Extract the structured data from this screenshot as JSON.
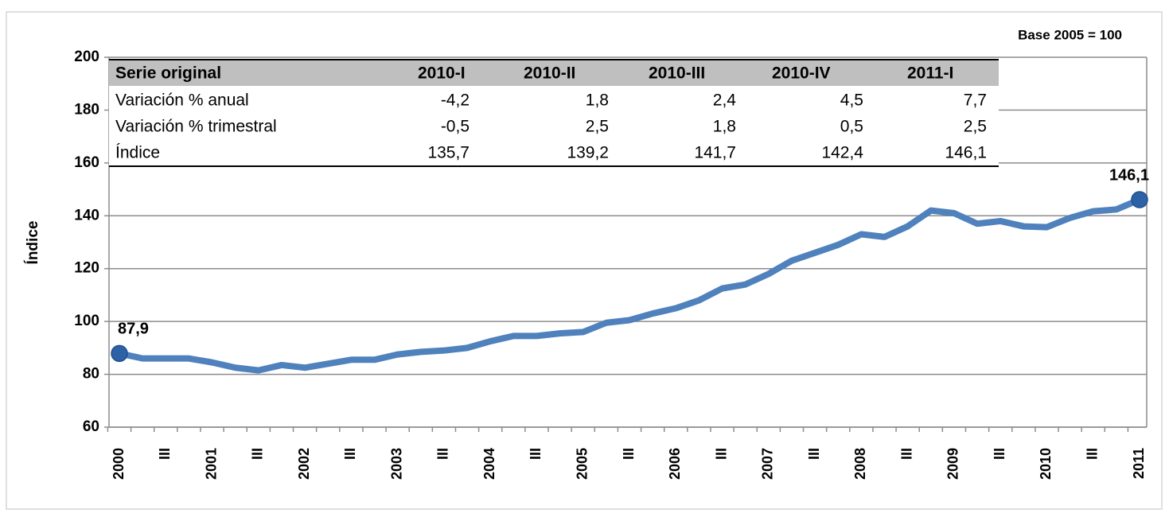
{
  "chart_data": {
    "type": "line",
    "note": "Base 2005 = 100",
    "y_label": "Índice",
    "categories": [
      "2000",
      null,
      "III",
      null,
      "2001",
      null,
      "III",
      null,
      "2002",
      null,
      "III",
      null,
      "2003",
      null,
      "III",
      null,
      "2004",
      null,
      "III",
      null,
      "2005",
      null,
      "III",
      null,
      "2006",
      null,
      "III",
      null,
      "2007",
      null,
      "III",
      null,
      "2008",
      null,
      "III",
      null,
      "2009",
      null,
      "III",
      null,
      "2010",
      null,
      "III",
      null,
      "2011"
    ],
    "series": [
      {
        "name": "Índice",
        "color": "#4f81bd",
        "values": [
          87.9,
          86,
          86,
          86,
          84.5,
          82.5,
          81.5,
          83.5,
          82.5,
          84,
          85.5,
          85.5,
          87.5,
          88.5,
          89,
          90,
          92.5,
          94.5,
          94.5,
          95.5,
          96,
          99.5,
          100.5,
          103,
          105,
          108,
          112.5,
          114,
          118,
          123,
          126,
          129,
          133,
          132,
          136,
          142,
          141,
          137,
          138,
          136,
          135.7,
          139.2,
          141.7,
          142.4,
          146.1
        ],
        "value_labels": [
          "87,9",
          null,
          null,
          null,
          null,
          null,
          null,
          null,
          null,
          null,
          null,
          null,
          null,
          null,
          null,
          null,
          null,
          null,
          null,
          null,
          null,
          null,
          null,
          null,
          null,
          null,
          null,
          null,
          null,
          null,
          null,
          null,
          null,
          null,
          null,
          null,
          null,
          null,
          null,
          null,
          null,
          null,
          null,
          null,
          "146,1"
        ]
      }
    ],
    "ylim": [
      60,
      200
    ],
    "yticks": [
      60,
      80,
      100,
      120,
      140,
      160,
      180,
      200
    ],
    "grid": true,
    "table": {
      "header": [
        "Serie original",
        "2010-I",
        "2010-II",
        "2010-III",
        "2010-IV",
        "2011-I"
      ],
      "rows": [
        [
          "Variación % anual",
          "-4,2",
          "1,8",
          "2,4",
          "4,5",
          "7,7"
        ],
        [
          "Variación % trimestral",
          "-0,5",
          "2,5",
          "1,8",
          "0,5",
          "2,5"
        ],
        [
          "Índice",
          "135,7",
          "139,2",
          "141,7",
          "142,4",
          "146,1"
        ]
      ]
    }
  }
}
